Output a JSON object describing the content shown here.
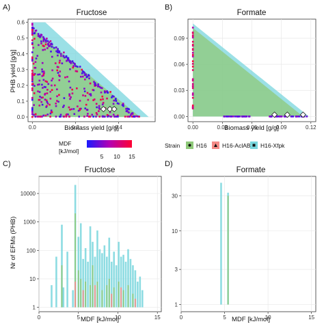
{
  "figure": {
    "panel_labels": [
      "A)",
      "B)",
      "C)",
      "D)"
    ],
    "legend_mdf": {
      "title_line1": "MDF",
      "title_line2": "[kJ/mol]",
      "ticks": [
        "5",
        "10",
        "15"
      ],
      "colors": [
        "#1a1aff",
        "#b300b3",
        "#ff0033"
      ]
    },
    "legend_strain": {
      "title": "Strain",
      "entries": [
        "H16",
        "H16-AclAB",
        "H16-Xfpk"
      ],
      "colors": [
        "#8fc97a",
        "#f48b86",
        "#79d6dd"
      ]
    }
  },
  "chart_data": [
    {
      "id": "A",
      "type": "scatter",
      "title": "Fructose",
      "xlabel": "Biomass yield [g/g]",
      "ylabel": "PHB yield [g/g]",
      "xlim": [
        -0.02,
        0.57
      ],
      "ylim": [
        -0.03,
        0.62
      ],
      "xticks": [
        "0.0",
        "0.2",
        "0.4"
      ],
      "xtick_values": [
        0.0,
        0.2,
        0.4
      ],
      "yticks": [
        "0.0",
        "0.1",
        "0.2",
        "0.3",
        "0.4",
        "0.5",
        "0.6"
      ],
      "ytick_values": [
        0.0,
        0.1,
        0.2,
        0.3,
        0.4,
        0.5,
        0.6
      ],
      "regions": [
        {
          "strain": "H16-Xfpk",
          "polygon": [
            [
              0.0,
              0.6
            ],
            [
              0.0,
              0.0
            ],
            [
              0.54,
              0.0
            ],
            [
              0.06,
              0.6
            ]
          ]
        },
        {
          "strain": "H16",
          "polygon": [
            [
              0.0,
              0.56
            ],
            [
              0.0,
              0.0
            ],
            [
              0.5,
              0.0
            ]
          ]
        }
      ],
      "mdf_points_summary": "dense point cloud covering the triangular feasible region, colored by MDF from ~0 to 15 kJ/mol",
      "diamonds_x": [
        0.33,
        0.36,
        0.38
      ],
      "diamonds_y": [
        0.05,
        0.05,
        0.05
      ]
    },
    {
      "id": "B",
      "type": "scatter",
      "title": "Formate",
      "xlabel": "Biomass yield [g/g]",
      "ylabel": "",
      "xlim": [
        -0.005,
        0.125
      ],
      "ylim": [
        -0.006,
        0.112
      ],
      "xticks": [
        "0.00",
        "0.03",
        "0.06",
        "0.09",
        "0.12"
      ],
      "xtick_values": [
        0.0,
        0.03,
        0.06,
        0.09,
        0.12
      ],
      "yticks": [
        "0.00",
        "0.03",
        "0.06",
        "0.09"
      ],
      "ytick_values": [
        0.0,
        0.03,
        0.06,
        0.09
      ],
      "regions": [
        {
          "strain": "H16-Xfpk",
          "polygon": [
            [
              0.0,
              0.107
            ],
            [
              0.0,
              0.0
            ],
            [
              0.118,
              0.0
            ]
          ]
        },
        {
          "strain": "H16",
          "polygon": [
            [
              0.0,
              0.102
            ],
            [
              0.0,
              0.0
            ],
            [
              0.112,
              0.0
            ]
          ]
        }
      ],
      "diamonds_x": [
        0.083,
        0.096,
        0.112
      ],
      "diamonds_y": [
        0.002,
        0.002,
        0.002
      ]
    },
    {
      "id": "C",
      "type": "bar",
      "title": "Fructose",
      "xlabel": "MDF [kJ/mol]",
      "ylabel": "Nr of EFMs (PHB)",
      "xlim": [
        0,
        15.5
      ],
      "log_y": true,
      "ylim": [
        0.7,
        40000
      ],
      "xticks": [
        "0",
        "5",
        "10",
        "15"
      ],
      "xtick_values": [
        0,
        5,
        10,
        15
      ],
      "yticks": [
        "1",
        "10",
        "100",
        "1000",
        "10000"
      ],
      "ytick_values": [
        1,
        10,
        100,
        1000,
        10000
      ],
      "series": [
        {
          "name": "H16-Xfpk",
          "x": [
            1.6,
            2.2,
            2.9,
            3.1,
            3.6,
            4.3,
            4.6,
            5.0,
            5.3,
            5.6,
            5.9,
            6.2,
            6.5,
            6.8,
            7.1,
            7.4,
            7.7,
            8.0,
            8.3,
            8.6,
            8.9,
            9.2,
            9.5,
            9.8,
            10.1,
            10.4,
            10.7,
            11.0,
            11.3,
            11.6,
            11.9,
            12.2,
            12.5,
            12.8,
            13.1
          ],
          "values": [
            6,
            60,
            800,
            5,
            90,
            4,
            20000,
            300,
            900,
            50,
            120,
            40,
            700,
            200,
            60,
            500,
            110,
            80,
            150,
            60,
            280,
            40,
            90,
            30,
            200,
            60,
            70,
            40,
            110,
            50,
            30,
            20,
            8,
            12,
            4
          ]
        },
        {
          "name": "H16",
          "x": [
            2.9,
            4.6,
            5.0,
            5.3,
            5.9,
            6.5,
            6.8,
            7.4,
            8.0,
            8.6,
            8.9,
            9.5,
            10.1,
            10.7,
            11.3,
            11.9
          ],
          "values": [
            30,
            2000,
            20,
            10,
            8,
            6,
            30,
            8,
            4,
            6,
            10,
            5,
            8,
            4,
            6,
            3
          ]
        },
        {
          "name": "H16-AclAB",
          "x": [
            4.6,
            5.6,
            7.1,
            9.2,
            10.4,
            12.2
          ],
          "values": [
            8,
            4,
            6,
            3,
            5,
            2
          ]
        }
      ]
    },
    {
      "id": "D",
      "type": "bar",
      "title": "Formate",
      "xlabel": "MDF [kJ/mol]",
      "ylabel": "",
      "xlim": [
        0,
        15.5
      ],
      "log_y": true,
      "ylim": [
        0.8,
        55
      ],
      "xticks": [
        "0",
        "5",
        "10",
        "15"
      ],
      "xtick_values": [
        0,
        5,
        10,
        15
      ],
      "yticks": [
        "1",
        "3",
        "10",
        "30"
      ],
      "ytick_values": [
        1,
        3,
        10,
        30
      ],
      "series": [
        {
          "name": "H16-Xfpk",
          "x": [
            4.6,
            5.4
          ],
          "values": [
            45,
            33
          ]
        },
        {
          "name": "H16",
          "x": [
            5.4
          ],
          "values": [
            30
          ]
        }
      ]
    }
  ]
}
